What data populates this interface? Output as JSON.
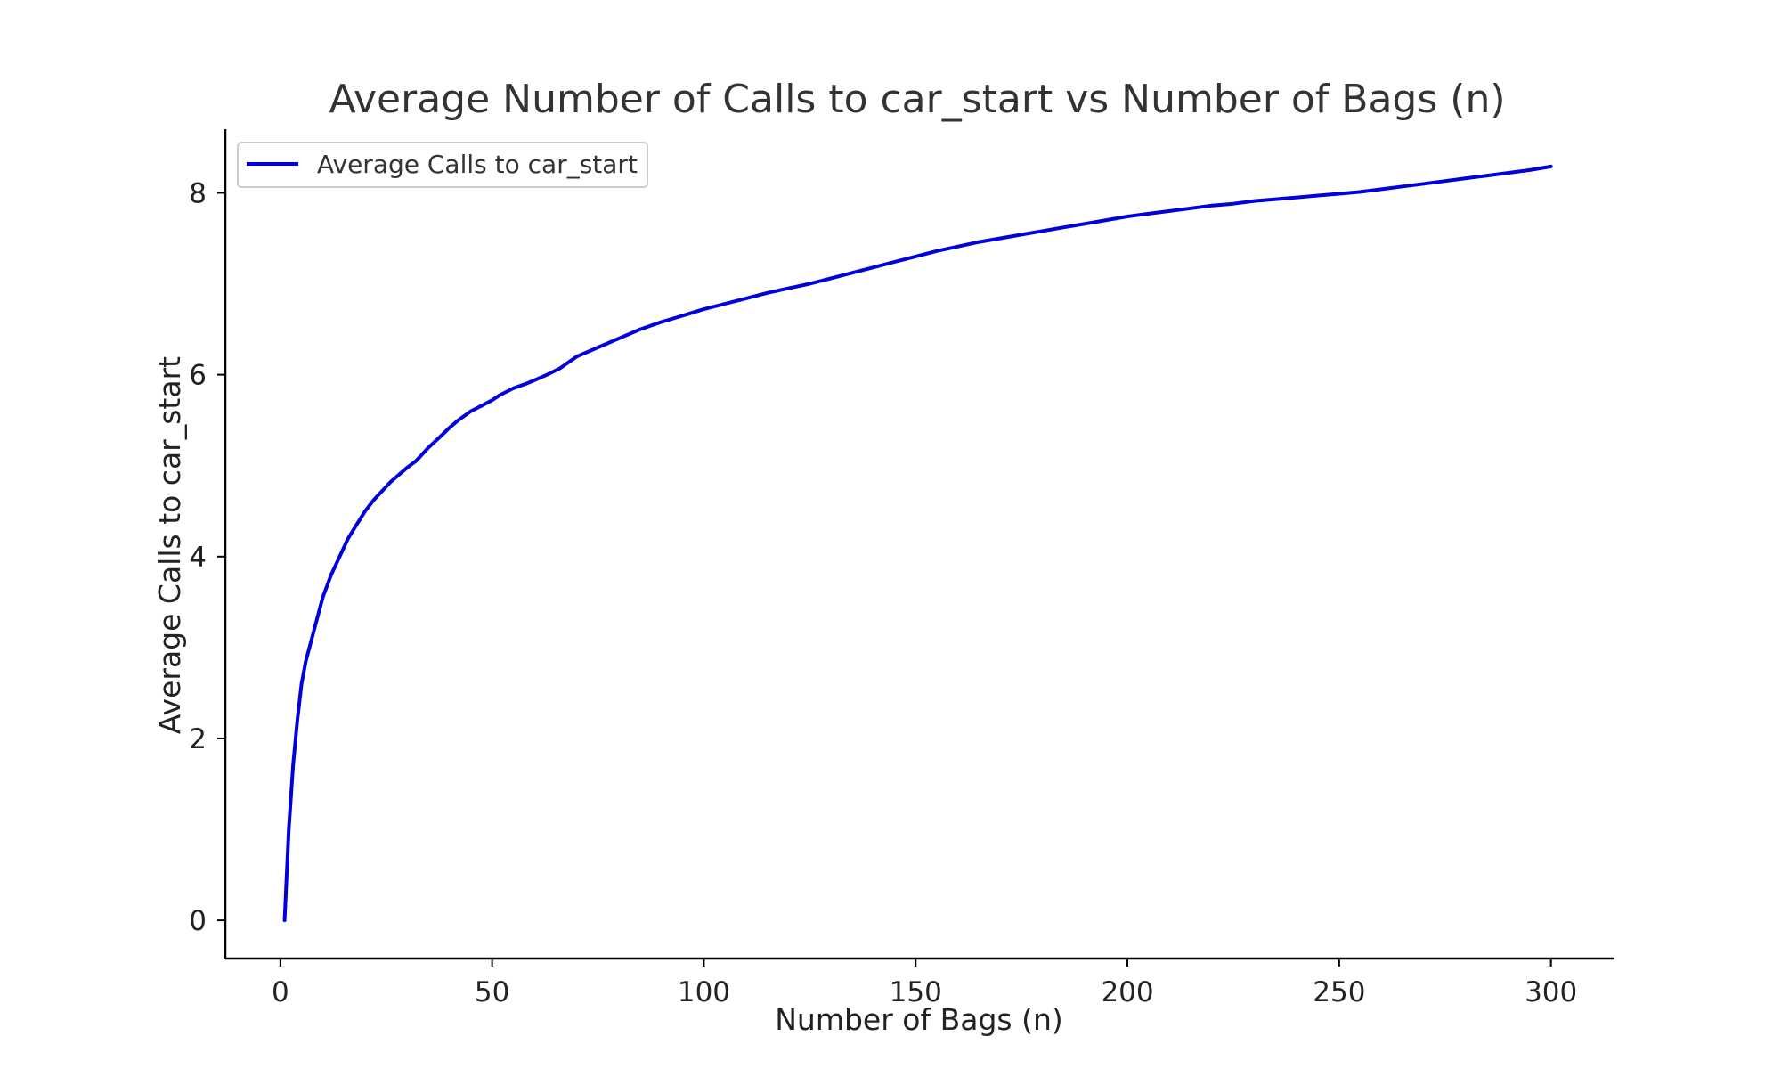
{
  "chart_data": {
    "type": "line",
    "title": "Average Number of Calls to car_start vs Number of Bags (n)",
    "xlabel": "Number of Bags (n)",
    "ylabel": "Average Calls to car_start",
    "xlim": [
      -13,
      315
    ],
    "ylim": [
      -0.42,
      8.7
    ],
    "xticks": [
      0,
      50,
      100,
      150,
      200,
      250,
      300
    ],
    "yticks": [
      0,
      2,
      4,
      6,
      8
    ],
    "grid": false,
    "legend_position": "top-left",
    "series": [
      {
        "name": "Average Calls to car_start",
        "color": "#0000dd",
        "x": [
          1,
          2,
          3,
          4,
          5,
          6,
          8,
          10,
          12,
          14,
          16,
          18,
          20,
          22,
          24,
          26,
          28,
          30,
          32,
          35,
          38,
          40,
          42,
          45,
          48,
          50,
          52,
          55,
          58,
          60,
          63,
          66,
          70,
          75,
          80,
          85,
          90,
          95,
          100,
          105,
          110,
          115,
          120,
          125,
          130,
          135,
          140,
          145,
          150,
          155,
          160,
          165,
          170,
          175,
          180,
          185,
          190,
          195,
          200,
          205,
          210,
          215,
          220,
          225,
          230,
          235,
          240,
          245,
          250,
          255,
          260,
          265,
          270,
          275,
          280,
          285,
          290,
          295,
          300
        ],
        "y": [
          0.0,
          1.0,
          1.7,
          2.2,
          2.6,
          2.85,
          3.2,
          3.55,
          3.8,
          4.0,
          4.2,
          4.35,
          4.5,
          4.62,
          4.72,
          4.82,
          4.9,
          4.98,
          5.05,
          5.2,
          5.33,
          5.42,
          5.5,
          5.6,
          5.67,
          5.72,
          5.78,
          5.85,
          5.9,
          5.94,
          6.0,
          6.07,
          6.2,
          6.3,
          6.4,
          6.5,
          6.58,
          6.65,
          6.72,
          6.78,
          6.84,
          6.9,
          6.95,
          7.0,
          7.06,
          7.12,
          7.18,
          7.24,
          7.3,
          7.36,
          7.41,
          7.46,
          7.5,
          7.54,
          7.58,
          7.62,
          7.66,
          7.7,
          7.74,
          7.77,
          7.8,
          7.83,
          7.86,
          7.88,
          7.91,
          7.93,
          7.95,
          7.97,
          7.99,
          8.01,
          8.04,
          8.07,
          8.1,
          8.13,
          8.16,
          8.19,
          8.22,
          8.25,
          8.29
        ]
      }
    ]
  }
}
